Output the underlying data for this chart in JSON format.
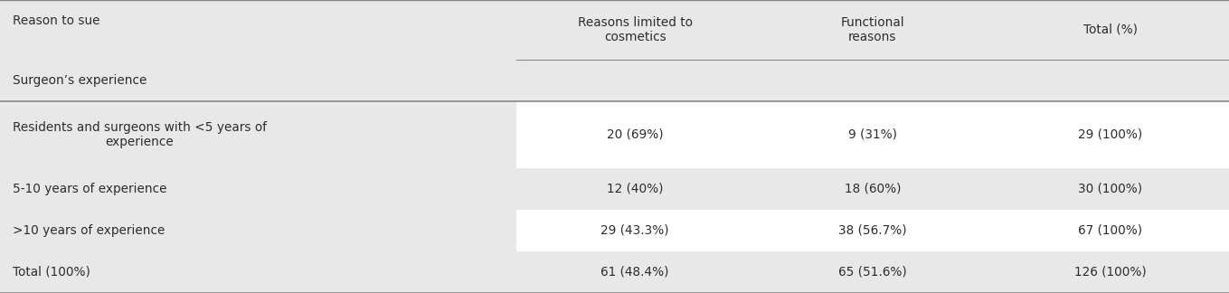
{
  "col_headers": [
    "Reasons limited to\ncosmetics",
    "Functional\nreasons",
    "Total (%)"
  ],
  "row_headers": [
    "Reason to sue",
    "Surgeon’s experience",
    "Residents and surgeons with <5 years of\nexperience",
    "5-10 years of experience",
    ">10 years of experience",
    "Total (100%)"
  ],
  "data": [
    [
      "20 (69%)",
      "9 (31%)",
      "29 (100%)"
    ],
    [
      "12 (40%)",
      "18 (60%)",
      "30 (100%)"
    ],
    [
      "29 (43.3%)",
      "38 (56.7%)",
      "67 (100%)"
    ],
    [
      "61 (48.4%)",
      "65 (51.6%)",
      "126 (100%)"
    ]
  ],
  "bg_light": "#e8e8e8",
  "bg_white": "#ffffff",
  "text_color": "#2d2d2d",
  "line_color": "#888888"
}
